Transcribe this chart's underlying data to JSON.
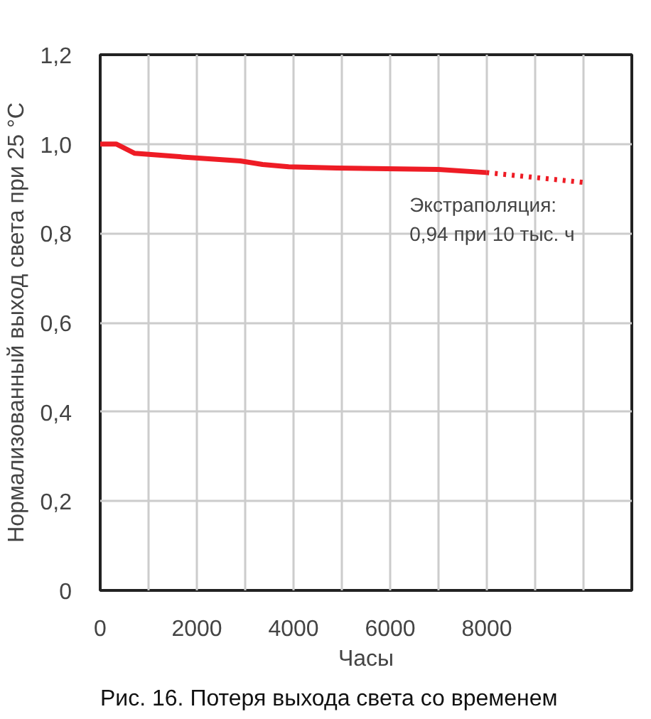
{
  "chart_data": {
    "type": "line",
    "xlabel": "Часы",
    "ylabel": "Нормализованный выход света при 25 °C",
    "series": [
      {
        "color": "#ee1c25",
        "line_style": "solid",
        "x": [
          0,
          330,
          715,
          1700,
          2900,
          3360,
          3900,
          4900,
          7000,
          7990
        ],
        "values": [
          1.0,
          1.0,
          0.979,
          0.971,
          0.962,
          0.954,
          0.949,
          0.946,
          0.943,
          0.936
        ]
      },
      {
        "color": "#ee1c25",
        "line_style": "dotted",
        "x": [
          7990,
          10000
        ],
        "values": [
          0.936,
          0.914
        ]
      }
    ],
    "xlim": [
      0,
      11000
    ],
    "ylim": [
      0,
      1.2
    ],
    "xticks": [
      0,
      {
        "value": 1000,
        "label": null
      },
      2000,
      {
        "value": 3000,
        "label": null
      },
      4000,
      {
        "value": 5000,
        "label": null
      },
      6000,
      {
        "value": 7000,
        "label": null
      },
      8000,
      {
        "value": 9000,
        "label": null
      },
      {
        "value": 10000,
        "label": null
      }
    ],
    "yticks": [
      {
        "value": 0,
        "label": "0"
      },
      {
        "value": 0.2,
        "label": "0,2"
      },
      {
        "value": 0.4,
        "label": "0,4"
      },
      {
        "value": 0.6,
        "label": "0,6"
      },
      {
        "value": 0.8,
        "label": "0,8"
      },
      {
        "value": 1.0,
        "label": "1,0"
      },
      {
        "value": 1.2,
        "label": "1,2"
      }
    ],
    "grid": true,
    "marker": "none",
    "annotations": [
      "Экстраполяция:\n0,94 при 10 тыс. ч",
      "Рис. 16. Потеря выхода света со временем"
    ]
  }
}
